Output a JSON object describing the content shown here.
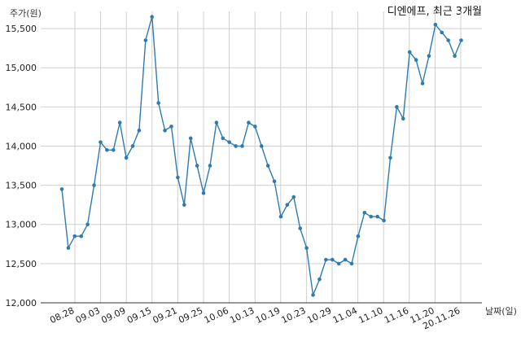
{
  "chart_data": {
    "type": "line",
    "title": "디엔에프, 최근 3개월",
    "xlabel": "날짜(일)",
    "ylabel": "주가(원)",
    "ylim": [
      12000,
      15750
    ],
    "yticks": [
      "12,000",
      "12,500",
      "13,000",
      "13,500",
      "14,000",
      "14,500",
      "15,000",
      "15,500"
    ],
    "xticks": [
      "08.28",
      "09.03",
      "09.09",
      "09.15",
      "09.21",
      "09.25",
      "10.06",
      "10.13",
      "10.19",
      "10.23",
      "10.29",
      "11.04",
      "11.10",
      "11.16",
      "11.20",
      "20.11.26"
    ],
    "grid": true,
    "series": [
      {
        "values": [
          13450,
          12700,
          12850,
          12850,
          13000,
          13500,
          14050,
          13950,
          13950,
          14300,
          13850,
          14000,
          14200,
          15350,
          15650,
          14550,
          14200,
          14250,
          13600,
          13250,
          14100,
          13750,
          13400,
          13750,
          14300,
          14100,
          14050,
          14000,
          14000,
          14300,
          14250,
          14000,
          13750,
          13550,
          13100,
          13250,
          13350,
          12950,
          12700,
          12100,
          12300,
          12550,
          12550,
          12500,
          12550,
          12500,
          12850,
          13150,
          13100,
          13100,
          13050,
          13850,
          14500,
          14350,
          15200,
          15100,
          14800,
          15150,
          15550,
          15450,
          15350,
          15150,
          15350
        ]
      }
    ]
  }
}
